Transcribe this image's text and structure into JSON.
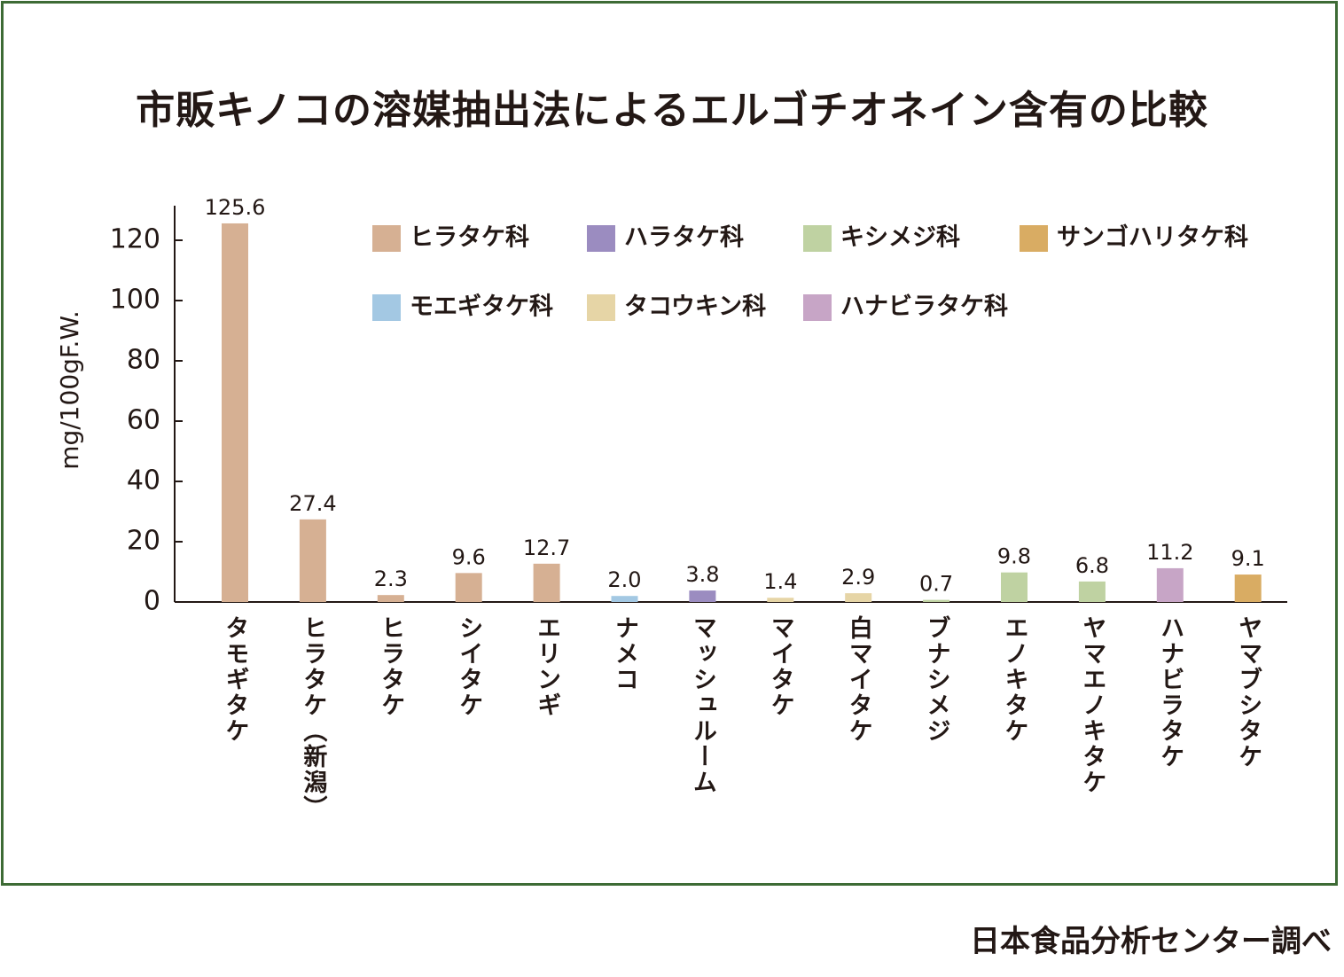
{
  "title": "市販キノコの溶媒抽出法によるエルゴチオネイン含有の比較",
  "source": "日本食品分析センター調べ",
  "chart_data": {
    "type": "bar",
    "ylabel": "mg/100gF.W.",
    "ylim": [
      0,
      130
    ],
    "yticks": [
      0,
      20,
      40,
      60,
      80,
      100,
      120
    ],
    "grid": false,
    "legend_placement": "top-right",
    "families": [
      {
        "name": "ヒラタケ科",
        "color": "#d6b093"
      },
      {
        "name": "ハラタケ科",
        "color": "#9b8cc0"
      },
      {
        "name": "キシメジ科",
        "color": "#bfd2a2"
      },
      {
        "name": "サンゴハリタケ科",
        "color": "#d9ac63"
      },
      {
        "name": "モエギタケ科",
        "color": "#a3c8e3"
      },
      {
        "name": "タコウキン科",
        "color": "#e6d5a6"
      },
      {
        "name": "ハナビラタケ科",
        "color": "#c7a5c6"
      }
    ],
    "bars": [
      {
        "category": "タモギタケ",
        "value": 125.6,
        "label": "125.6",
        "family": 0
      },
      {
        "category": "ヒラタケ（新潟）",
        "value": 27.4,
        "label": "27.4",
        "family": 0
      },
      {
        "category": "ヒラタケ",
        "value": 2.3,
        "label": "2.3",
        "family": 0
      },
      {
        "category": "シイタケ",
        "value": 9.6,
        "label": "9.6",
        "family": 0
      },
      {
        "category": "エリンギ",
        "value": 12.7,
        "label": "12.7",
        "family": 0
      },
      {
        "category": "ナメコ",
        "value": 2.0,
        "label": "2.0",
        "family": 4
      },
      {
        "category": "マッシュルーム",
        "value": 3.8,
        "label": "3.8",
        "family": 1
      },
      {
        "category": "マイタケ",
        "value": 1.4,
        "label": "1.4",
        "family": 5
      },
      {
        "category": "白マイタケ",
        "value": 2.9,
        "label": "2.9",
        "family": 5
      },
      {
        "category": "ブナシメジ",
        "value": 0.7,
        "label": "0.7",
        "family": 2
      },
      {
        "category": "エノキタケ",
        "value": 9.8,
        "label": "9.8",
        "family": 2
      },
      {
        "category": "ヤマエノキタケ",
        "value": 6.8,
        "label": "6.8",
        "family": 2
      },
      {
        "category": "ハナビラタケ",
        "value": 11.2,
        "label": "11.2",
        "family": 6
      },
      {
        "category": "ヤマブシタケ",
        "value": 9.1,
        "label": "9.1",
        "family": 3
      }
    ]
  }
}
